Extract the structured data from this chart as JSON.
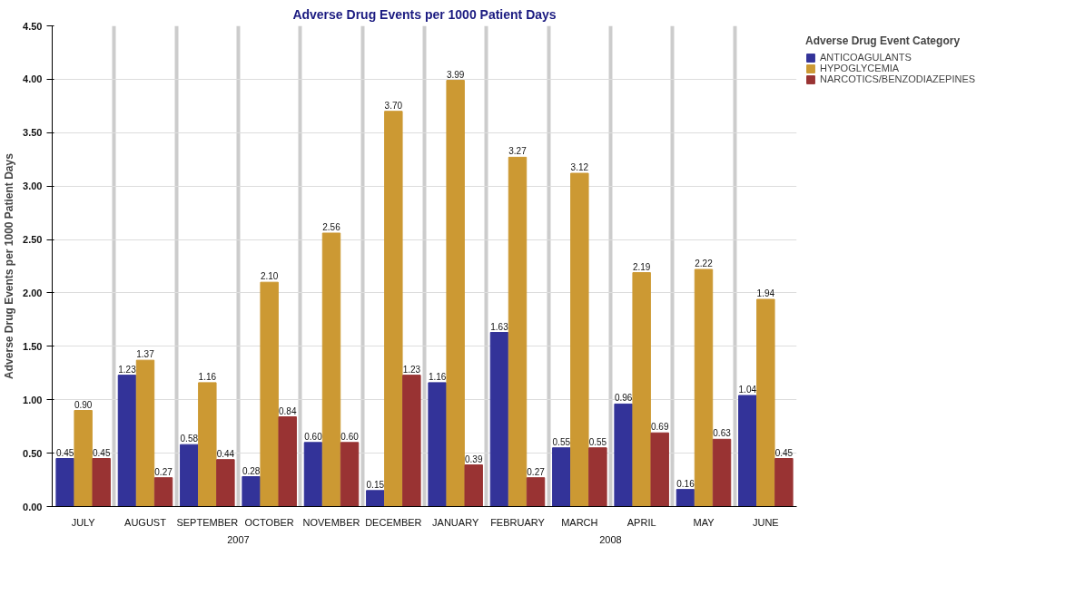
{
  "chart_data": {
    "type": "bar",
    "title": "Adverse Drug Events per 1000 Patient Days",
    "ylabel": "Adverse Drug Events per 1000 Patient Days",
    "legend_title": "Adverse Drug Event Category",
    "categories": [
      "JULY",
      "AUGUST",
      "SEPTEMBER",
      "OCTOBER",
      "NOVEMBER",
      "DECEMBER",
      "JANUARY",
      "FEBRUARY",
      "MARCH",
      "APRIL",
      "MAY",
      "JUNE"
    ],
    "series": [
      {
        "name": "ANTICOAGULANTS",
        "color": "#333399",
        "values": [
          0.45,
          1.23,
          0.58,
          0.28,
          0.6,
          0.15,
          1.16,
          1.63,
          0.55,
          0.96,
          0.16,
          1.04
        ],
        "value_labels": [
          "0.45",
          "1.23",
          "0.58",
          "0.28",
          "0.60",
          "0.15",
          "1.16",
          "1.63",
          "0.55",
          "0.96",
          "0.16",
          "1.04"
        ]
      },
      {
        "name": "HYPOGLYCEMIA",
        "color": "#cc9933",
        "values": [
          0.9,
          1.37,
          1.16,
          2.1,
          2.56,
          3.7,
          3.99,
          3.27,
          3.12,
          2.19,
          2.22,
          1.94
        ],
        "value_labels": [
          "0.90",
          "1.37",
          "1.16",
          "2.10",
          "2.56",
          "3.70",
          "3.99",
          "3.27",
          "3.12",
          "2.19",
          "2.22",
          "1.94"
        ]
      },
      {
        "name": "NARCOTICS/BENZODIAZEPINES",
        "color": "#993333",
        "values": [
          0.45,
          0.27,
          0.44,
          0.84,
          0.6,
          1.23,
          0.39,
          0.27,
          0.55,
          0.69,
          0.63,
          0.45
        ],
        "value_labels": [
          "0.45",
          "0.27",
          "0.44",
          "0.84",
          "0.60",
          "1.23",
          "0.39",
          "0.27",
          "0.55",
          "0.69",
          "0.63",
          "0.45"
        ]
      }
    ],
    "ylim": [
      0,
      4.5
    ],
    "yticks": [
      {
        "value": 0,
        "label": "0.00"
      },
      {
        "value": 0.5,
        "label": "0.50"
      },
      {
        "value": 1,
        "label": "1.00"
      },
      {
        "value": 1.5,
        "label": "1.50"
      },
      {
        "value": 2,
        "label": "2.00"
      },
      {
        "value": 2.5,
        "label": "2.50"
      },
      {
        "value": 3,
        "label": "3.00"
      },
      {
        "value": 3.5,
        "label": "3.50"
      },
      {
        "value": 4,
        "label": "4.00"
      },
      {
        "value": 4.5,
        "label": "4.50"
      }
    ],
    "grid": true,
    "legend": "top right",
    "annotations": [
      "2007",
      "2008"
    ]
  }
}
